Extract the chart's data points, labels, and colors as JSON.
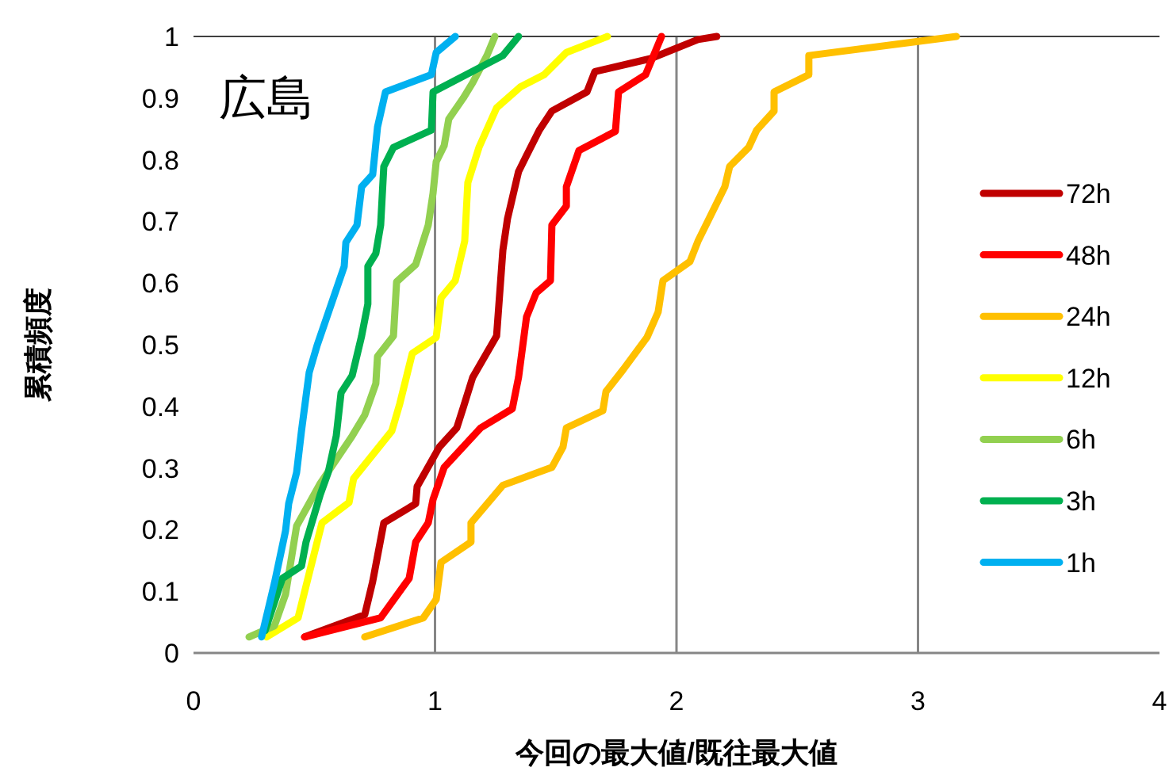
{
  "chart_data": {
    "type": "line",
    "title": "広島",
    "xlabel": "今回の最大値/既往最大値",
    "ylabel": "累積頻度",
    "xlim": [
      0,
      4
    ],
    "xticks": [
      0,
      1,
      2,
      3,
      4
    ],
    "ylim": [
      0,
      1
    ],
    "yticks": [
      0,
      0.1,
      0.2,
      0.3,
      0.4,
      0.5,
      0.6,
      0.7,
      0.8,
      0.9,
      1
    ],
    "grid": "x",
    "legend": "right",
    "marker": "none",
    "line_style": "solid",
    "series": [
      {
        "name": "72h",
        "color": "#c00000",
        "x": [
          0.46,
          0.709,
          0.742,
          0.788,
          0.92,
          0.926,
          1.018,
          1.09,
          1.117,
          1.156,
          1.255,
          1.281,
          1.3,
          1.346,
          1.379,
          1.432,
          1.484,
          1.629,
          1.662,
          1.892,
          2.089,
          2.167
        ],
        "values": [
          0.026,
          0.062,
          0.116,
          0.211,
          0.242,
          0.27,
          0.334,
          0.365,
          0.398,
          0.447,
          0.514,
          0.653,
          0.704,
          0.781,
          0.807,
          0.848,
          0.879,
          0.91,
          0.943,
          0.964,
          0.995,
          1.0
        ]
      },
      {
        "name": "48h",
        "color": "#ff0000",
        "x": [
          0.46,
          0.775,
          0.893,
          0.92,
          0.972,
          0.992,
          1.038,
          1.189,
          1.32,
          1.346,
          1.379,
          1.419,
          1.478,
          1.484,
          1.544,
          1.544,
          1.596,
          1.747,
          1.76,
          1.872,
          1.938
        ],
        "values": [
          0.026,
          0.057,
          0.121,
          0.18,
          0.211,
          0.249,
          0.301,
          0.365,
          0.396,
          0.447,
          0.545,
          0.584,
          0.604,
          0.694,
          0.725,
          0.756,
          0.815,
          0.846,
          0.91,
          0.938,
          1.0
        ]
      },
      {
        "name": "24h",
        "color": "#ffc000",
        "x": [
          0.709,
          0.952,
          1.005,
          1.025,
          1.149,
          1.149,
          1.281,
          1.484,
          1.53,
          1.544,
          1.695,
          1.708,
          1.78,
          1.878,
          1.924,
          1.944,
          2.056,
          2.089,
          2.2,
          2.22,
          2.299,
          2.332,
          2.404,
          2.404,
          2.548,
          2.548,
          3.159
        ],
        "values": [
          0.026,
          0.057,
          0.087,
          0.147,
          0.18,
          0.211,
          0.272,
          0.301,
          0.334,
          0.365,
          0.393,
          0.424,
          0.46,
          0.512,
          0.553,
          0.604,
          0.635,
          0.668,
          0.756,
          0.789,
          0.82,
          0.848,
          0.879,
          0.91,
          0.938,
          0.969,
          1.0
        ]
      },
      {
        "name": "12h",
        "color": "#ffff00",
        "x": [
          0.302,
          0.433,
          0.479,
          0.532,
          0.644,
          0.663,
          0.821,
          0.854,
          0.906,
          1.005,
          1.025,
          1.084,
          1.123,
          1.136,
          1.182,
          1.255,
          1.353,
          1.452,
          1.544,
          1.714
        ],
        "values": [
          0.026,
          0.057,
          0.129,
          0.211,
          0.244,
          0.283,
          0.36,
          0.404,
          0.486,
          0.512,
          0.576,
          0.604,
          0.668,
          0.763,
          0.82,
          0.884,
          0.918,
          0.938,
          0.974,
          1.0
        ]
      },
      {
        "name": "6h",
        "color": "#92d050",
        "x": [
          0.23,
          0.335,
          0.381,
          0.427,
          0.525,
          0.657,
          0.709,
          0.755,
          0.762,
          0.828,
          0.841,
          0.92,
          0.972,
          0.992,
          1.005,
          1.038,
          1.057,
          1.117,
          1.156,
          1.215,
          1.248
        ],
        "values": [
          0.026,
          0.044,
          0.095,
          0.206,
          0.275,
          0.352,
          0.386,
          0.437,
          0.481,
          0.514,
          0.602,
          0.63,
          0.694,
          0.746,
          0.797,
          0.823,
          0.866,
          0.9,
          0.925,
          0.969,
          1.0
        ]
      },
      {
        "name": "3h",
        "color": "#00b050",
        "x": [
          0.296,
          0.368,
          0.447,
          0.466,
          0.525,
          0.558,
          0.591,
          0.611,
          0.657,
          0.696,
          0.722,
          0.722,
          0.755,
          0.775,
          0.788,
          0.828,
          0.985,
          0.992,
          1.281,
          1.346
        ],
        "values": [
          0.036,
          0.121,
          0.141,
          0.18,
          0.257,
          0.293,
          0.352,
          0.422,
          0.45,
          0.514,
          0.566,
          0.627,
          0.648,
          0.694,
          0.789,
          0.82,
          0.848,
          0.91,
          0.969,
          1.0
        ]
      },
      {
        "name": "1h",
        "color": "#00b0f0",
        "x": [
          0.282,
          0.335,
          0.381,
          0.394,
          0.427,
          0.447,
          0.479,
          0.512,
          0.624,
          0.631,
          0.677,
          0.696,
          0.742,
          0.762,
          0.795,
          0.985,
          1.005,
          1.084
        ],
        "values": [
          0.026,
          0.113,
          0.198,
          0.242,
          0.293,
          0.36,
          0.455,
          0.499,
          0.627,
          0.666,
          0.694,
          0.756,
          0.776,
          0.853,
          0.91,
          0.938,
          0.974,
          1.0
        ]
      }
    ]
  }
}
